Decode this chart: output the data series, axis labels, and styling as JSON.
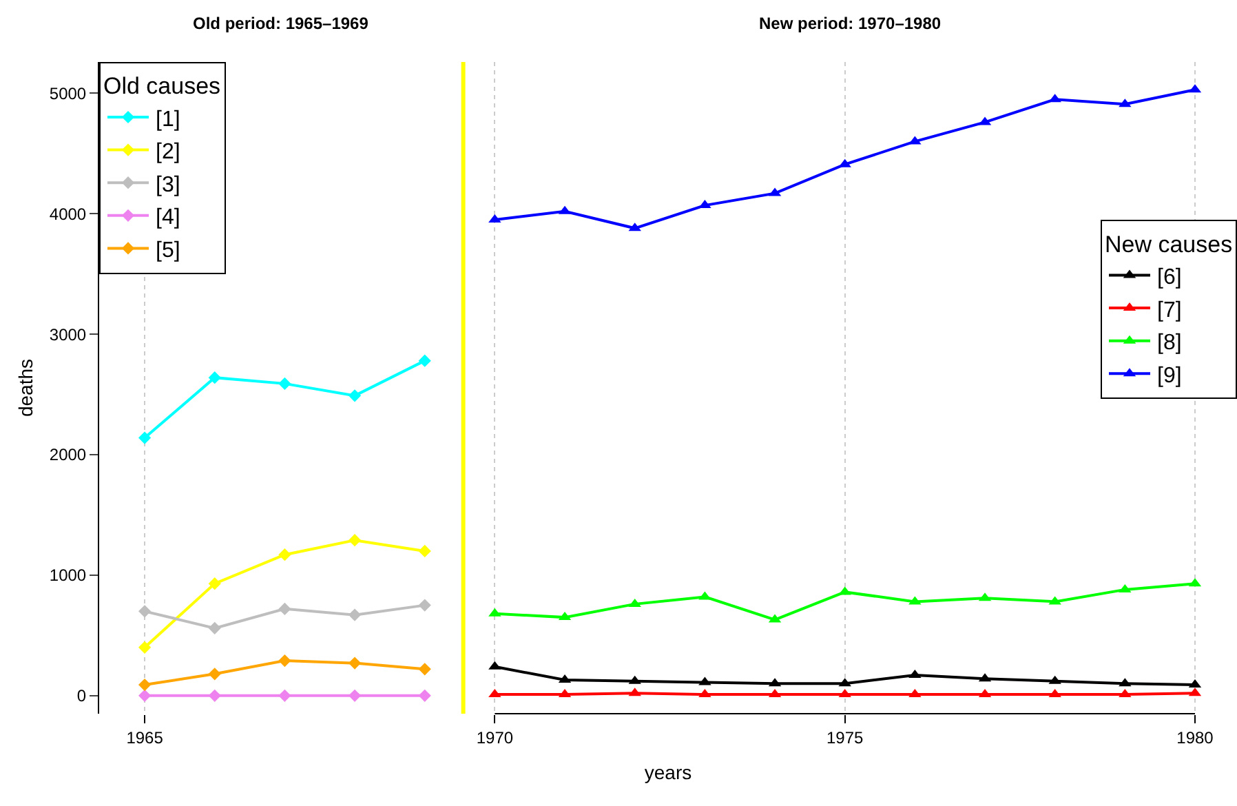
{
  "chart_data": {
    "type": "line",
    "xlabel": "years",
    "ylabel": "deaths",
    "annotations": [
      "Old period: 1965–1969",
      "New period: 1970–1980"
    ],
    "xlim": [
      1964.35,
      1980.6
    ],
    "xticks": [
      1965,
      1970,
      1975,
      1980
    ],
    "ylim": [
      -150,
      5260
    ],
    "yticks": [
      0,
      1000,
      2000,
      3000,
      4000,
      5000
    ],
    "grid": "x",
    "line_style": "solid",
    "legend": [
      "top left",
      "right"
    ],
    "legend_title": [
      "Old causes",
      "New causes"
    ],
    "ref_lines": [
      {
        "axis": "x",
        "value": 1969.55,
        "color": "#ffff00"
      }
    ],
    "series": [
      {
        "name": "[1]",
        "color": "#00ffff",
        "marker": "diamond",
        "x": [
          1965,
          1966,
          1967,
          1968,
          1969
        ],
        "values": [
          2140,
          2640,
          2590,
          2490,
          2780
        ]
      },
      {
        "name": "[2]",
        "color": "#ffff00",
        "marker": "diamond",
        "x": [
          1965,
          1966,
          1967,
          1968,
          1969
        ],
        "values": [
          400,
          930,
          1170,
          1290,
          1200
        ]
      },
      {
        "name": "[3]",
        "color": "#bebebe",
        "marker": "diamond",
        "x": [
          1965,
          1966,
          1967,
          1968,
          1969
        ],
        "values": [
          700,
          560,
          720,
          670,
          750
        ]
      },
      {
        "name": "[4]",
        "color": "#ee82ee",
        "marker": "diamond",
        "x": [
          1965,
          1966,
          1967,
          1968,
          1969
        ],
        "values": [
          0,
          0,
          0,
          0,
          0
        ]
      },
      {
        "name": "[5]",
        "color": "#ffa500",
        "marker": "diamond",
        "x": [
          1965,
          1966,
          1967,
          1968,
          1969
        ],
        "values": [
          90,
          180,
          290,
          270,
          220
        ]
      },
      {
        "name": "[6]",
        "color": "#000000",
        "marker": "triangle",
        "x": [
          1970,
          1971,
          1972,
          1973,
          1974,
          1975,
          1976,
          1977,
          1978,
          1979,
          1980
        ],
        "values": [
          240,
          130,
          120,
          110,
          100,
          100,
          170,
          140,
          120,
          100,
          90
        ]
      },
      {
        "name": "[7]",
        "color": "#ff0000",
        "marker": "triangle",
        "x": [
          1970,
          1971,
          1972,
          1973,
          1974,
          1975,
          1976,
          1977,
          1978,
          1979,
          1980
        ],
        "values": [
          10,
          10,
          20,
          10,
          10,
          10,
          10,
          10,
          10,
          10,
          20
        ]
      },
      {
        "name": "[8]",
        "color": "#00ff00",
        "marker": "triangle",
        "x": [
          1970,
          1971,
          1972,
          1973,
          1974,
          1975,
          1976,
          1977,
          1978,
          1979,
          1980
        ],
        "values": [
          680,
          650,
          760,
          820,
          630,
          860,
          780,
          810,
          780,
          880,
          930
        ]
      },
      {
        "name": "[9]",
        "color": "#0000ff",
        "marker": "triangle",
        "x": [
          1970,
          1971,
          1972,
          1973,
          1974,
          1975,
          1976,
          1977,
          1978,
          1979,
          1980
        ],
        "values": [
          3950,
          4020,
          3880,
          4070,
          4170,
          4410,
          4600,
          4760,
          4950,
          4910,
          5030
        ]
      }
    ]
  }
}
